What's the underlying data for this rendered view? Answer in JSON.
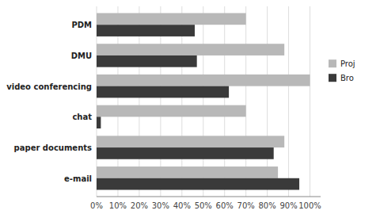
{
  "chart_data": {
    "type": "bar",
    "orientation": "horizontal",
    "categories": [
      "e-mail",
      "paper documents",
      "chat",
      "video conferencing",
      "DMU",
      "PDM"
    ],
    "series": [
      {
        "name": "Proj",
        "color": "#b8b8b8",
        "values": [
          85,
          88,
          70,
          100,
          88,
          70
        ]
      },
      {
        "name": "Bro",
        "color": "#3a3a3a",
        "values": [
          95,
          83,
          2,
          62,
          47,
          46
        ]
      }
    ],
    "xlim": [
      0,
      105
    ],
    "xticks": [
      {
        "value": 0,
        "label": "0%"
      },
      {
        "value": 10,
        "label": "10%"
      },
      {
        "value": 20,
        "label": "20%"
      },
      {
        "value": 30,
        "label": "30%"
      },
      {
        "value": 40,
        "label": "40%"
      },
      {
        "value": 50,
        "label": "50%"
      },
      {
        "value": 60,
        "label": "60%"
      },
      {
        "value": 70,
        "label": "70%"
      },
      {
        "value": 80,
        "label": "80%"
      },
      {
        "value": 90,
        "label": "90%"
      },
      {
        "value": 100,
        "label": "100%"
      }
    ],
    "grid": true,
    "legend": "right"
  }
}
